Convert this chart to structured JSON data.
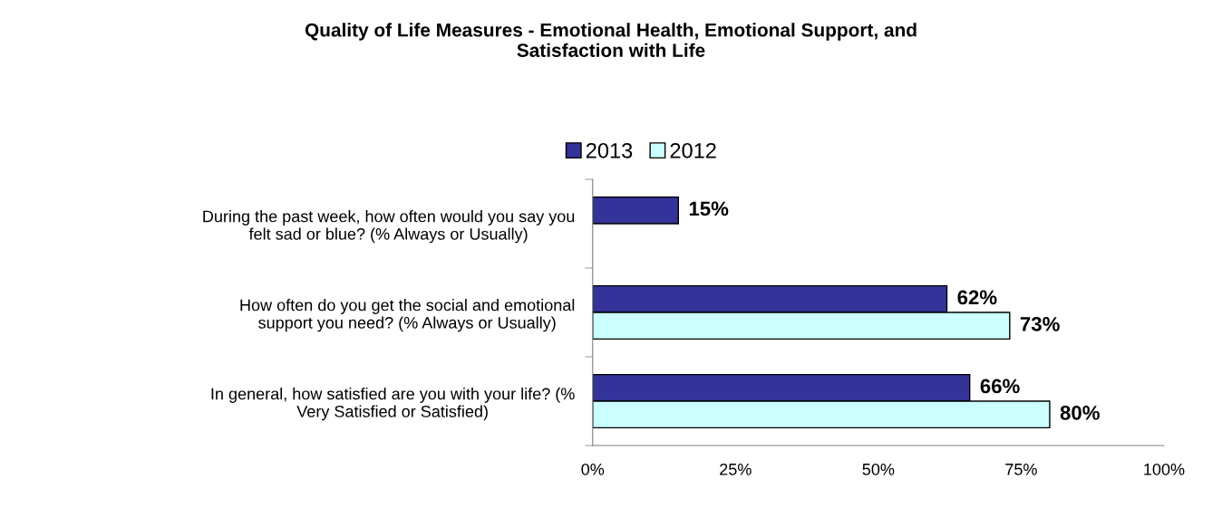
{
  "chart_data": {
    "type": "bar",
    "orientation": "horizontal",
    "title": "Quality of Life Measures - Emotional Health, Emotional Support, and\nSatisfaction with Life",
    "categories": [
      "During the past week, how often would you say you\nfelt sad or blue? (% Always or Usually)",
      "How often do you get the social and emotional\nsupport you need? (% Always or Usually)",
      "In general, how satisfied are you with your life? (%\nVery Satisfied or Satisfied)"
    ],
    "series": [
      {
        "name": "2013",
        "color": "#333399",
        "values": [
          15,
          62,
          66
        ],
        "value_labels": [
          "15%",
          "62%",
          "66%"
        ]
      },
      {
        "name": "2012",
        "color": "#ccffff",
        "values": [
          null,
          73,
          80
        ],
        "value_labels": [
          null,
          "73%",
          "80%"
        ]
      }
    ],
    "xlim": [
      0,
      100
    ],
    "xticks": [
      {
        "value": 0,
        "label": "0%"
      },
      {
        "value": 25,
        "label": "25%"
      },
      {
        "value": 50,
        "label": "50%"
      },
      {
        "value": 75,
        "label": "75%"
      },
      {
        "value": 100,
        "label": "100%"
      }
    ],
    "grid": false,
    "legend": "top"
  }
}
